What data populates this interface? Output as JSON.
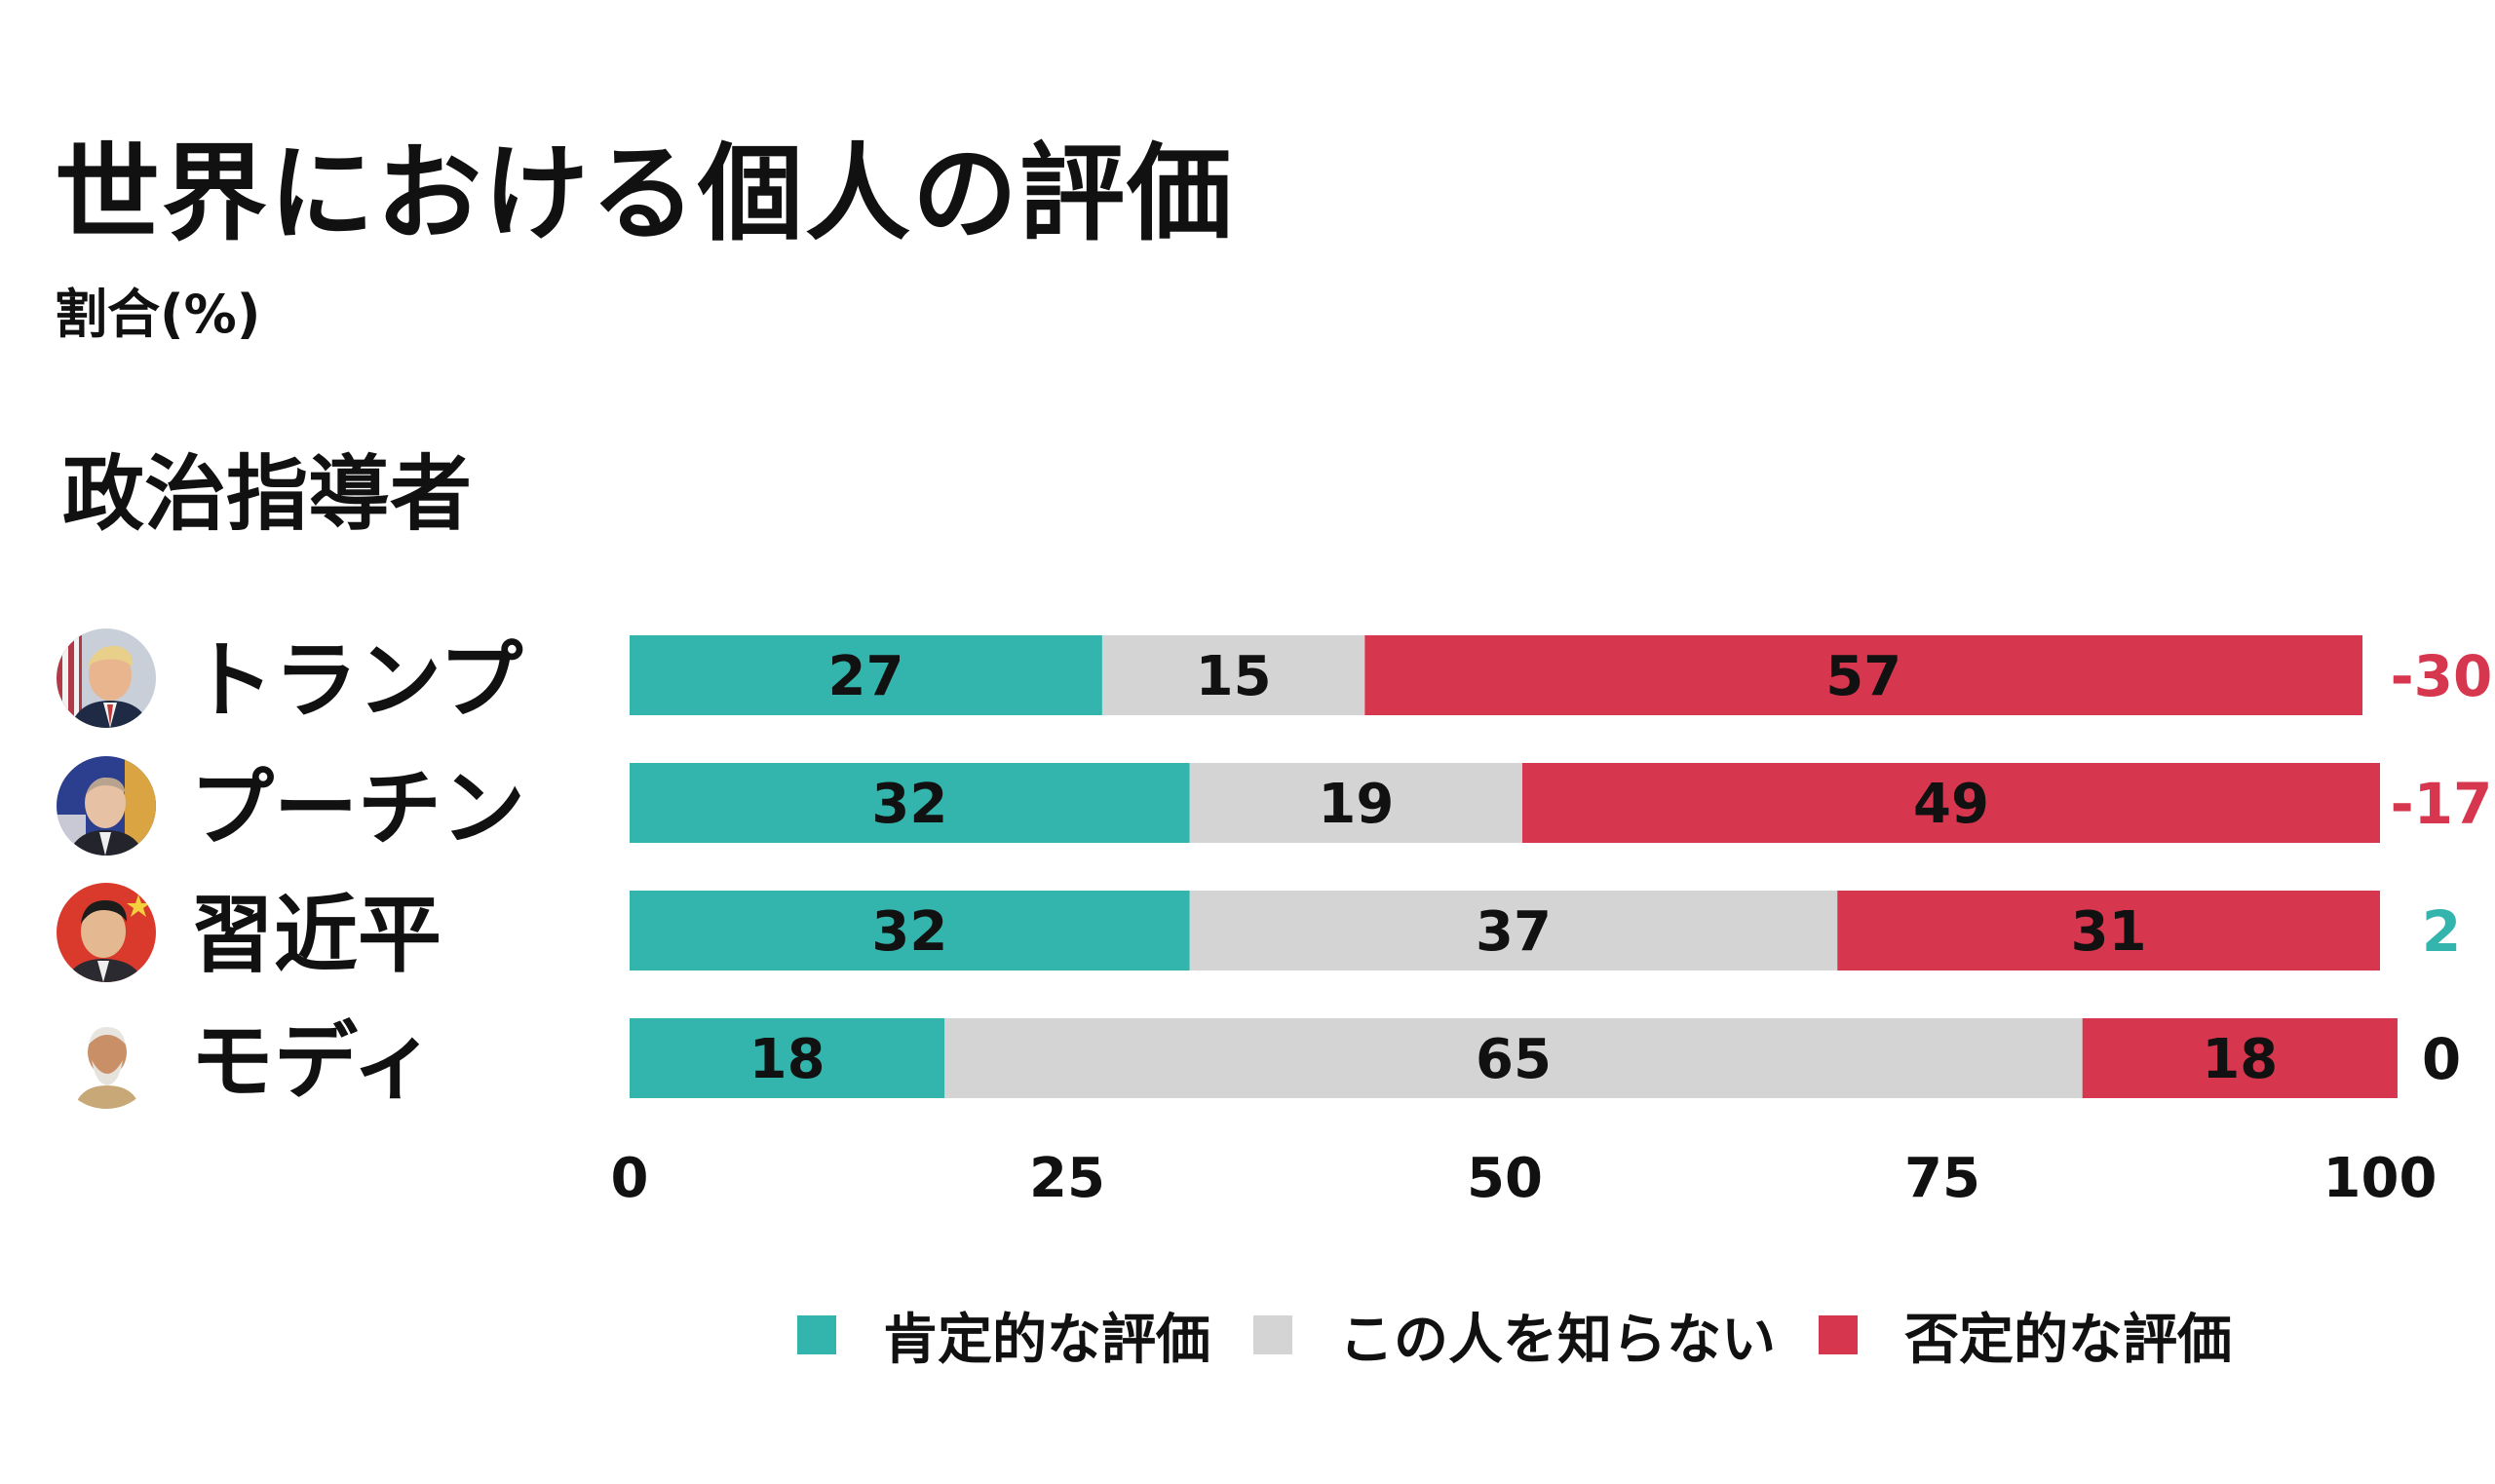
{
  "title": "世界における個人の評価",
  "subtitle": "割合(%)",
  "section_title": "政治指導者",
  "colors": {
    "positive": "#33b5ad",
    "unknown": "#d4d4d4",
    "negative": "#d6364e",
    "text": "#111111"
  },
  "legend": [
    {
      "label": "肯定的な評価",
      "color": "#33b5ad"
    },
    {
      "label": "この人を知らない",
      "color": "#d4d4d4"
    },
    {
      "label": "否定的な評価",
      "color": "#d6364e"
    }
  ],
  "chart_data": {
    "type": "bar",
    "orientation": "horizontal",
    "stacked": true,
    "categories": [
      "トランプ",
      "プーチン",
      "習近平",
      "モディ"
    ],
    "series": [
      {
        "name": "肯定的な評価",
        "values": [
          27,
          32,
          32,
          18
        ]
      },
      {
        "name": "この人を知らない",
        "values": [
          15,
          19,
          37,
          65
        ]
      },
      {
        "name": "否定的な評価",
        "values": [
          57,
          49,
          31,
          18
        ]
      }
    ],
    "net": [
      "-30",
      "-17",
      "2",
      "0"
    ],
    "net_colors": [
      "#d6364e",
      "#d6364e",
      "#33b5ad",
      "#111111"
    ],
    "xlim": [
      0,
      100
    ],
    "xticks": [
      "0",
      "25",
      "50",
      "75",
      "100"
    ],
    "grid": false,
    "legend_position": "bottom"
  },
  "leaders": [
    {
      "name": "トランプ",
      "avatar": "trump-portrait-icon"
    },
    {
      "name": "プーチン",
      "avatar": "putin-portrait-icon"
    },
    {
      "name": "習近平",
      "avatar": "xi-portrait-icon"
    },
    {
      "name": "モディ",
      "avatar": "modi-portrait-icon"
    }
  ]
}
